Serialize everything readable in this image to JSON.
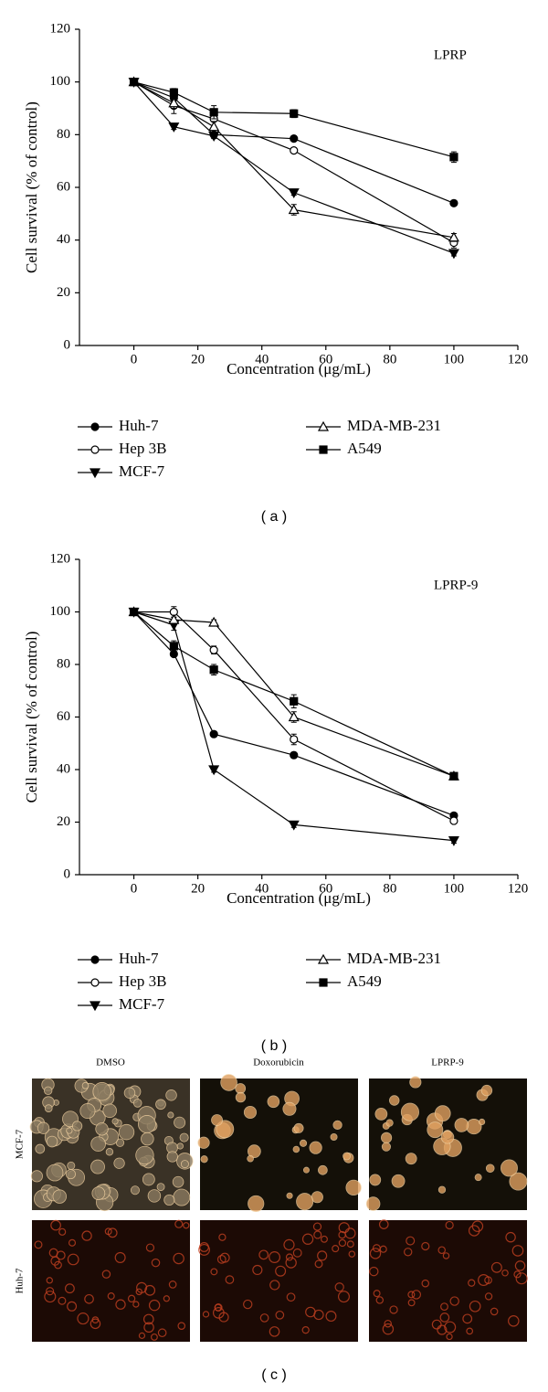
{
  "chart_data": [
    {
      "type": "line",
      "annotation": "LPRP",
      "x_label": "Concentration (μg/mL)",
      "y_label": "Cell survival (% of control)",
      "panel_label": "( a )",
      "x": [
        0,
        12.5,
        25,
        50,
        100
      ],
      "xlim": [
        -17,
        120
      ],
      "ylim": [
        0,
        120
      ],
      "xticks": [
        0,
        20,
        40,
        60,
        80,
        100,
        120
      ],
      "yticks": [
        0,
        20,
        40,
        60,
        80,
        100,
        120
      ],
      "series": [
        {
          "name": "Huh-7",
          "color": "#000000",
          "marker": "filled-circle",
          "values": [
            100,
            94,
            80,
            78.5,
            54
          ],
          "errors": [
            0.5,
            1,
            1,
            1,
            1
          ]
        },
        {
          "name": "Hep 3B",
          "color": "#000000",
          "marker": "open-circle",
          "values": [
            100,
            91,
            86,
            74,
            39
          ],
          "errors": [
            0.5,
            3,
            1,
            1,
            2
          ]
        },
        {
          "name": "MCF-7",
          "color": "#000000",
          "marker": "filled-triangle-down",
          "values": [
            100,
            83,
            79.5,
            58,
            35
          ],
          "errors": [
            0.5,
            1,
            1,
            1,
            1
          ]
        },
        {
          "name": "MDA-MB-231",
          "color": "#000000",
          "marker": "open-triangle-up",
          "values": [
            100,
            92,
            83,
            51.5,
            41
          ],
          "errors": [
            0.5,
            2,
            2,
            2,
            1.5
          ]
        },
        {
          "name": "A549",
          "color": "#000000",
          "marker": "filled-square",
          "values": [
            100,
            96,
            88.5,
            88,
            71.5
          ],
          "errors": [
            0.5,
            1.5,
            2.5,
            1.5,
            2
          ]
        }
      ]
    },
    {
      "type": "line",
      "annotation": "LPRP-9",
      "x_label": "Concentration (μg/mL)",
      "y_label": "Cell survival (% of control)",
      "panel_label": "( b )",
      "x": [
        0,
        12.5,
        25,
        50,
        100
      ],
      "xlim": [
        -17,
        120
      ],
      "ylim": [
        0,
        120
      ],
      "xticks": [
        0,
        20,
        40,
        60,
        80,
        100,
        120
      ],
      "yticks": [
        0,
        20,
        40,
        60,
        80,
        100,
        120
      ],
      "series": [
        {
          "name": "Huh-7",
          "color": "#000000",
          "marker": "filled-circle",
          "values": [
            100,
            84,
            53.5,
            45.5,
            22.5
          ],
          "errors": [
            0.5,
            1,
            1,
            1,
            1
          ]
        },
        {
          "name": "Hep 3B",
          "color": "#000000",
          "marker": "open-circle",
          "values": [
            100,
            100,
            85.5,
            51.5,
            20.5
          ],
          "errors": [
            0.5,
            2,
            1.5,
            2,
            1
          ]
        },
        {
          "name": "MCF-7",
          "color": "#000000",
          "marker": "filled-triangle-down",
          "values": [
            100,
            95,
            40,
            19,
            13
          ],
          "errors": [
            0.5,
            2,
            1,
            1,
            1
          ]
        },
        {
          "name": "MDA-MB-231",
          "color": "#000000",
          "marker": "open-triangle-up",
          "values": [
            100,
            97,
            96,
            60,
            37.5
          ],
          "errors": [
            0.5,
            1,
            1,
            2,
            1
          ]
        },
        {
          "name": "A549",
          "color": "#000000",
          "marker": "filled-square",
          "values": [
            100,
            87,
            78,
            66,
            37.5
          ],
          "errors": [
            0.5,
            2,
            2,
            2.5,
            1
          ]
        }
      ]
    }
  ],
  "image_panel": {
    "panel_label": "( c )",
    "columns": [
      "DMSO",
      "Doxorubicin",
      "LPRP-9"
    ],
    "rows": [
      "MCF-7",
      "Huh-7"
    ]
  }
}
